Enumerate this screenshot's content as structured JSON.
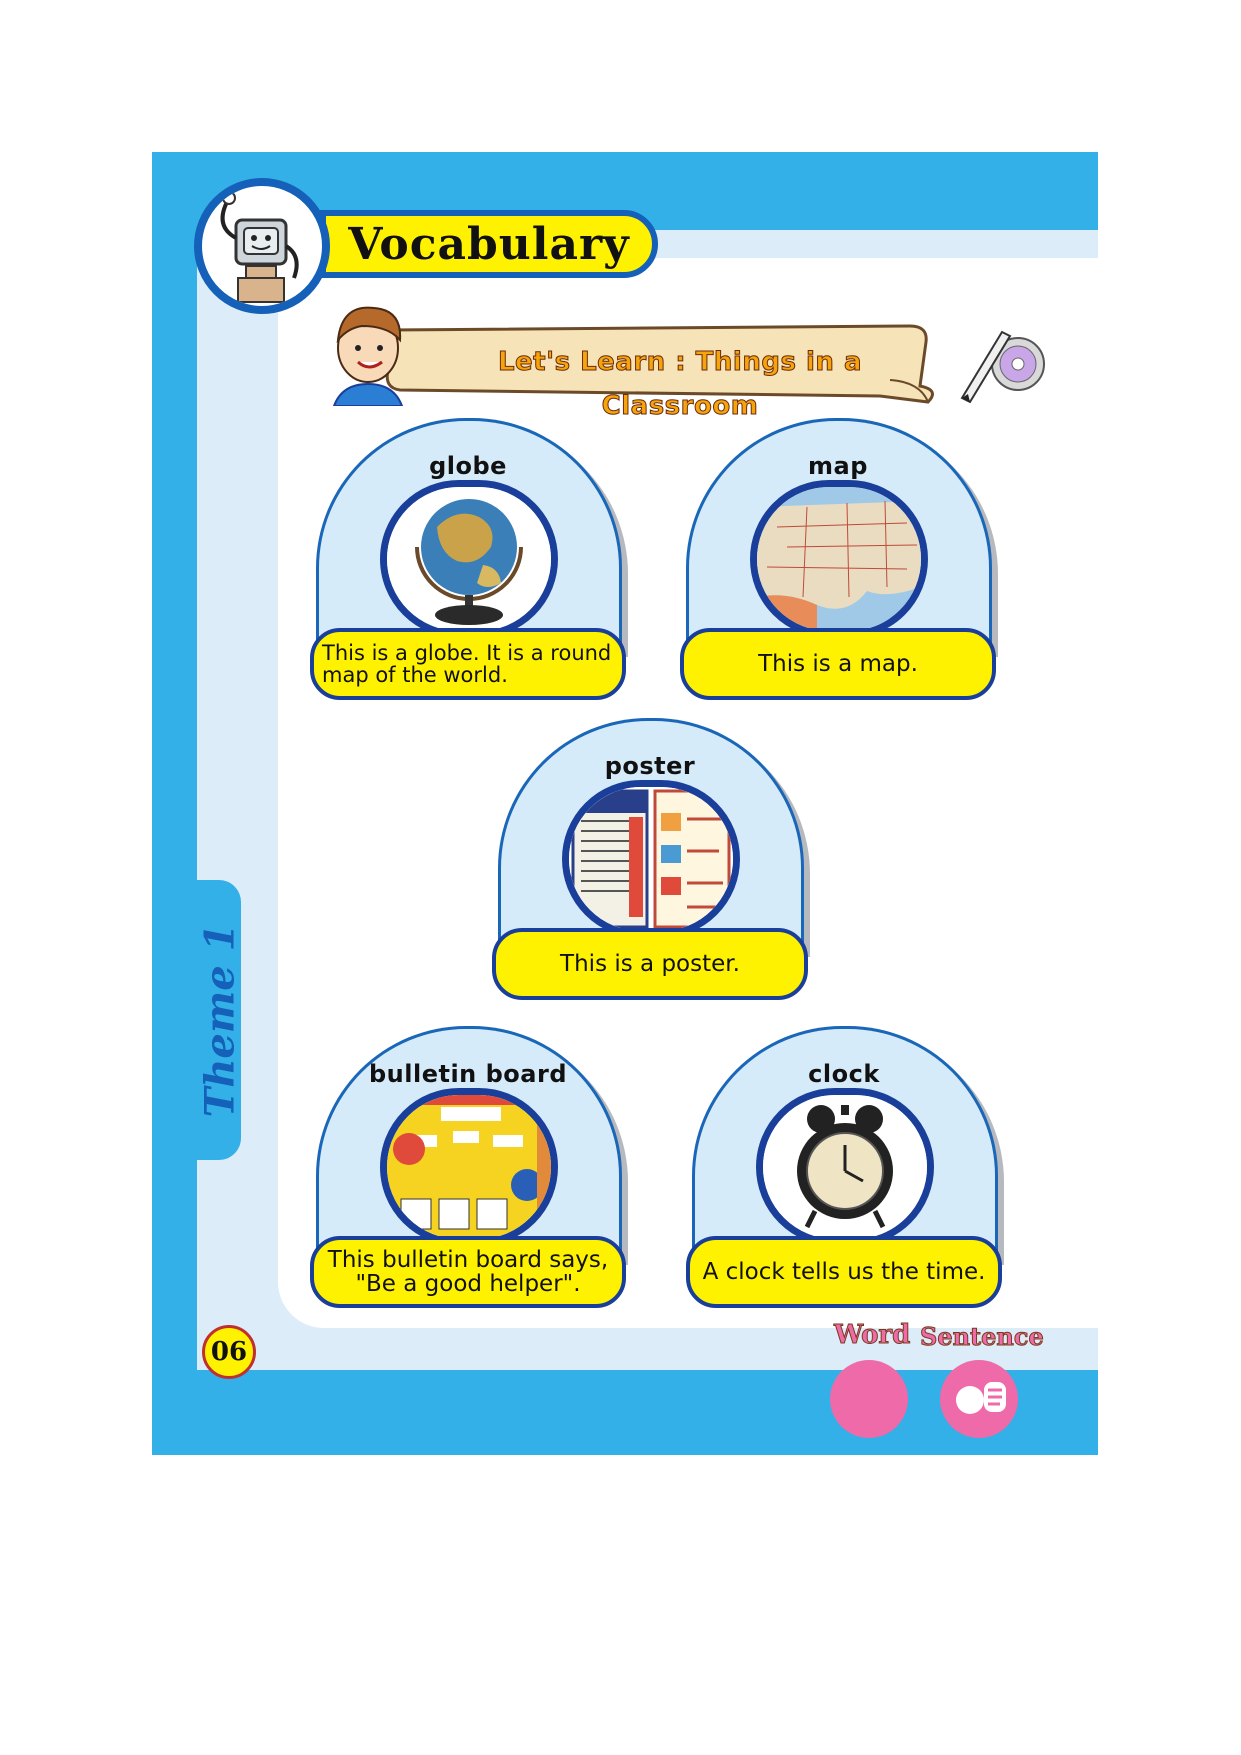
{
  "header": {
    "title": "Vocabulary",
    "subtitle": "Let's Learn : Things in a Classroom"
  },
  "cards": [
    {
      "word": "globe",
      "caption": "This is a globe. It is a round\nmap of the world.",
      "image": "globe-photo"
    },
    {
      "word": "map",
      "caption": "This is a map.",
      "image": "map-photo"
    },
    {
      "word": "poster",
      "caption": "This is a poster.",
      "image": "poster-photo"
    },
    {
      "word": "bulletin board",
      "caption": "This bulletin board says,\n\"Be a good helper\".",
      "image": "bulletin-board-photo"
    },
    {
      "word": "clock",
      "caption": "A clock tells us the time.",
      "image": "alarm-clock-photo"
    }
  ],
  "side_tab": {
    "label": "Theme 1"
  },
  "footer": {
    "page_number": "06",
    "word_icon_label": "Word",
    "sentence_icon_label": "Sentence"
  },
  "colors": {
    "frame_blue": "#33b0e8",
    "inner_light_blue": "#dcedf9",
    "caption_yellow": "#fff200",
    "border_navy": "#1a3f9a",
    "pink": "#ef6aa9"
  }
}
